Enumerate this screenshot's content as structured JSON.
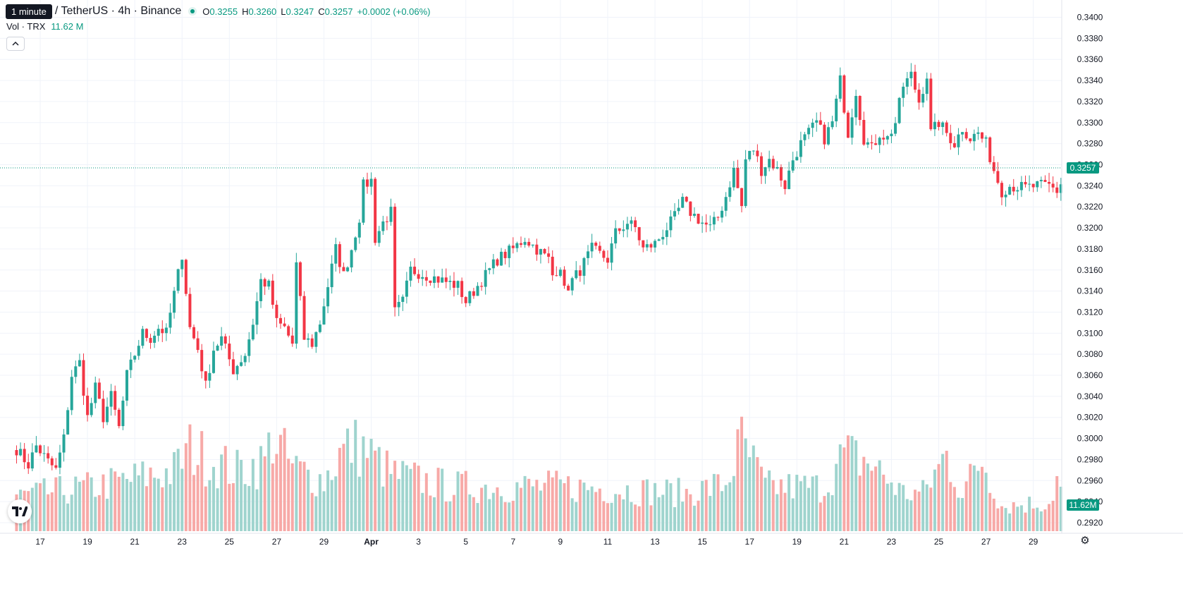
{
  "legend": {
    "tooltip": "1 minute",
    "symbol": "/ TetherUS · 4h · Binance",
    "open_label": "O",
    "open": "0.3255",
    "high_label": "H",
    "high": "0.3260",
    "low_label": "L",
    "low": "0.3247",
    "close_label": "C",
    "close": "0.3257",
    "change": "+0.0002 (+0.06%)",
    "volume_label": "Vol · TRX",
    "volume_value": "11.62 M",
    "collapse_icon": "chevron-up-icon"
  },
  "badges": {
    "price": "0.3257",
    "volume": "11.62M"
  },
  "colors": {
    "up": "#26a69a",
    "down": "#f23645",
    "up_volume": "#9fd4ce",
    "down_volume": "#f7a9a7",
    "accent": "#089981",
    "grid": "#f0f3fa"
  },
  "icons": {
    "logo": "tradingview-logo-icon",
    "settings": "gear-icon"
  },
  "chart_data": {
    "type": "candlestick",
    "interval": "4h",
    "grid": true,
    "last_price": 0.3257,
    "last_volume_millions": 11.62,
    "y_axis": {
      "ylim": [
        0.2908,
        0.3413
      ],
      "ticks": [
        "0.3400",
        "0.3380",
        "0.3360",
        "0.3340",
        "0.3320",
        "0.3300",
        "0.3280",
        "0.3260",
        "0.3240",
        "0.3220",
        "0.3200",
        "0.3180",
        "0.3160",
        "0.3140",
        "0.3120",
        "0.3100",
        "0.3080",
        "0.3060",
        "0.3040",
        "0.3020",
        "0.3000",
        "0.2980",
        "0.2960",
        "0.2940",
        "0.2920"
      ]
    },
    "x_axis": {
      "labels": [
        "17",
        "19",
        "21",
        "23",
        "25",
        "27",
        "29",
        "Apr",
        "3",
        "5",
        "7",
        "9",
        "11",
        "13",
        "15",
        "17",
        "19",
        "21",
        "23",
        "25",
        "27",
        "29"
      ],
      "label_candle_index": [
        6,
        18,
        30,
        42,
        54,
        66,
        78,
        90,
        102,
        114,
        126,
        138,
        150,
        162,
        174,
        186,
        198,
        210,
        222,
        234,
        246,
        258
      ],
      "bold_label": "Apr"
    },
    "anchors": [
      [
        0,
        0.299
      ],
      [
        3,
        0.2975
      ],
      [
        5,
        0.2993
      ],
      [
        8,
        0.2978
      ],
      [
        10,
        0.297
      ],
      [
        12,
        0.3
      ],
      [
        14,
        0.306
      ],
      [
        16,
        0.3072
      ],
      [
        18,
        0.302
      ],
      [
        20,
        0.3048
      ],
      [
        22,
        0.302
      ],
      [
        24,
        0.304
      ],
      [
        26,
        0.301
      ],
      [
        28,
        0.306
      ],
      [
        30,
        0.308
      ],
      [
        32,
        0.31
      ],
      [
        34,
        0.3095
      ],
      [
        36,
        0.3105
      ],
      [
        38,
        0.31
      ],
      [
        42,
        0.3175
      ],
      [
        44,
        0.3105
      ],
      [
        46,
        0.3085
      ],
      [
        48,
        0.305
      ],
      [
        50,
        0.3085
      ],
      [
        52,
        0.3095
      ],
      [
        55,
        0.3065
      ],
      [
        58,
        0.308
      ],
      [
        60,
        0.311
      ],
      [
        62,
        0.315
      ],
      [
        64,
        0.3145
      ],
      [
        66,
        0.311
      ],
      [
        68,
        0.3105
      ],
      [
        70,
        0.309
      ],
      [
        71,
        0.3165
      ],
      [
        73,
        0.3095
      ],
      [
        75,
        0.309
      ],
      [
        77,
        0.311
      ],
      [
        79,
        0.3145
      ],
      [
        81,
        0.318
      ],
      [
        83,
        0.3155
      ],
      [
        85,
        0.318
      ],
      [
        87,
        0.321
      ],
      [
        88,
        0.324
      ],
      [
        90,
        0.3245
      ],
      [
        91,
        0.319
      ],
      [
        93,
        0.3205
      ],
      [
        95,
        0.3215
      ],
      [
        96,
        0.312
      ],
      [
        98,
        0.313
      ],
      [
        100,
        0.316
      ],
      [
        104,
        0.3155
      ],
      [
        108,
        0.315
      ],
      [
        112,
        0.3145
      ],
      [
        114,
        0.313
      ],
      [
        118,
        0.315
      ],
      [
        122,
        0.317
      ],
      [
        126,
        0.318
      ],
      [
        129,
        0.319
      ],
      [
        132,
        0.318
      ],
      [
        135,
        0.317
      ],
      [
        136,
        0.3155
      ],
      [
        138,
        0.3165
      ],
      [
        139,
        0.314
      ],
      [
        141,
        0.315
      ],
      [
        143,
        0.316
      ],
      [
        146,
        0.318
      ],
      [
        150,
        0.317
      ],
      [
        152,
        0.3195
      ],
      [
        155,
        0.3205
      ],
      [
        157,
        0.32
      ],
      [
        159,
        0.318
      ],
      [
        162,
        0.3185
      ],
      [
        165,
        0.32
      ],
      [
        167,
        0.321
      ],
      [
        169,
        0.3225
      ],
      [
        171,
        0.3215
      ],
      [
        174,
        0.3205
      ],
      [
        176,
        0.32
      ],
      [
        178,
        0.321
      ],
      [
        180,
        0.323
      ],
      [
        182,
        0.3255
      ],
      [
        184,
        0.322
      ],
      [
        185,
        0.3265
      ],
      [
        187,
        0.3275
      ],
      [
        189,
        0.3255
      ],
      [
        191,
        0.3265
      ],
      [
        193,
        0.3255
      ],
      [
        195,
        0.324
      ],
      [
        197,
        0.3265
      ],
      [
        199,
        0.328
      ],
      [
        201,
        0.329
      ],
      [
        203,
        0.33
      ],
      [
        205,
        0.3285
      ],
      [
        207,
        0.33
      ],
      [
        209,
        0.334
      ],
      [
        211,
        0.329
      ],
      [
        213,
        0.333
      ],
      [
        215,
        0.3285
      ],
      [
        217,
        0.3275
      ],
      [
        219,
        0.329
      ],
      [
        221,
        0.3285
      ],
      [
        223,
        0.33
      ],
      [
        225,
        0.3335
      ],
      [
        227,
        0.3345
      ],
      [
        229,
        0.332
      ],
      [
        231,
        0.3345
      ],
      [
        232,
        0.329
      ],
      [
        234,
        0.33
      ],
      [
        236,
        0.329
      ],
      [
        238,
        0.328
      ],
      [
        240,
        0.3295
      ],
      [
        242,
        0.3285
      ],
      [
        244,
        0.329
      ],
      [
        246,
        0.328
      ],
      [
        248,
        0.3255
      ],
      [
        250,
        0.3235
      ],
      [
        252,
        0.324
      ],
      [
        256,
        0.3238
      ],
      [
        259,
        0.324
      ],
      [
        262,
        0.324
      ],
      [
        264,
        0.3235
      ],
      [
        266,
        0.325
      ],
      [
        267,
        0.3257
      ]
    ],
    "volume_anchors": [
      [
        0,
        55
      ],
      [
        20,
        70
      ],
      [
        40,
        95
      ],
      [
        44,
        130
      ],
      [
        48,
        115
      ],
      [
        56,
        95
      ],
      [
        63,
        110
      ],
      [
        65,
        150
      ],
      [
        70,
        100
      ],
      [
        78,
        80
      ],
      [
        82,
        120
      ],
      [
        85,
        135
      ],
      [
        88,
        130
      ],
      [
        95,
        90
      ],
      [
        110,
        70
      ],
      [
        140,
        70
      ],
      [
        170,
        60
      ],
      [
        180,
        75
      ],
      [
        184,
        140
      ],
      [
        190,
        70
      ],
      [
        205,
        70
      ],
      [
        210,
        120
      ],
      [
        216,
        110
      ],
      [
        225,
        60
      ],
      [
        230,
        60
      ],
      [
        236,
        120
      ],
      [
        240,
        60
      ],
      [
        245,
        115
      ],
      [
        250,
        40
      ],
      [
        262,
        45
      ],
      [
        264,
        80
      ],
      [
        267,
        38
      ]
    ]
  }
}
